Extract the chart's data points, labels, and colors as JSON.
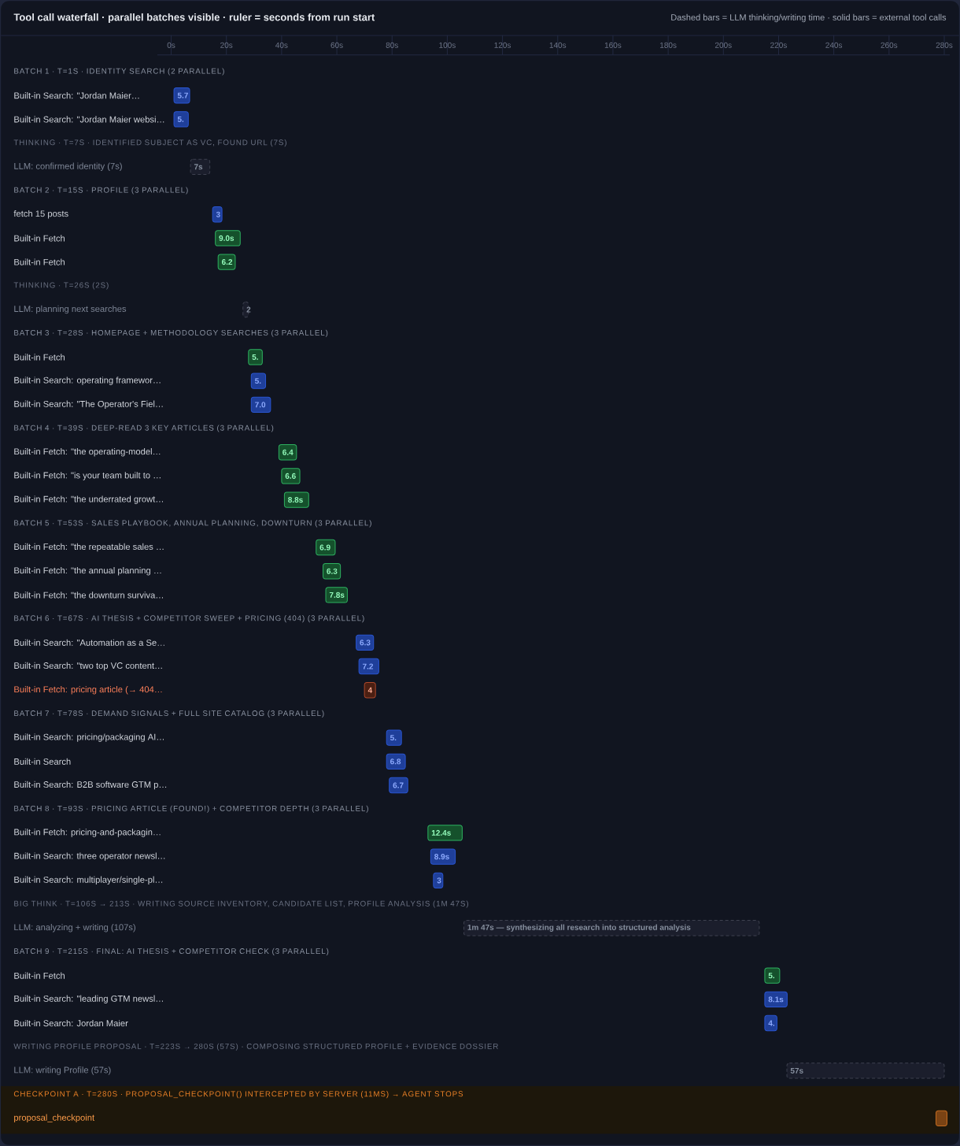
{
  "chart_data": {
    "type": "bar",
    "orientation": "horizontal",
    "title": "Tool call waterfall · parallel batches visible · ruler = seconds from run start",
    "subtitle": "Dashed bars = LLM thinking/writing time · solid bars = external tool calls",
    "categories": [
      "BATCH 1 · T=1S · IDENTITY SEARCH (2 PARALLEL)",
      "Built-in Search: \"Jordan Maier…",
      "Built-in Search: \"Jordan Maier websi…",
      "THINKING · T=7S · IDENTIFIED SUBJECT AS VC, FOUND URL (7S)",
      "LLM: confirmed identity (7s)",
      "BATCH 2 · T=15S · PROFILE (3 PARALLEL)",
      "fetch 15 posts",
      "Built-in Fetch",
      "Built-in Fetch",
      "THINKING · T=26S (2S)",
      "LLM: planning next searches",
      "BATCH 3 · T=28S · HOMEPAGE + METHODOLOGY SEARCHES (3 PARALLEL)",
      "Built-in Fetch",
      "Built-in Search: operating framewor…",
      "Built-in Search: \"The Operator's Fiel…",
      "BATCH 4 · T=39S · DEEP-READ 3 KEY ARTICLES (3 PARALLEL)",
      "Built-in Fetch: \"the operating-model…",
      "Built-in Fetch: \"is your team built to …",
      "Built-in Fetch: \"the underrated growt…",
      "BATCH 5 · T=53S · SALES PLAYBOOK, ANNUAL PLANNING, DOWNTURN (3 PARALLEL)",
      "Built-in Fetch: \"the repeatable sales …",
      "Built-in Fetch: \"the annual planning …",
      "Built-in Fetch: \"the downturn surviva…",
      "BATCH 6 · T=67S · AI THESIS + COMPETITOR SWEEP + PRICING (404) (3 PARALLEL)",
      "Built-in Search: \"Automation as a Se…",
      "Built-in Search: \"two top VC content…",
      "Built-in Fetch: pricing article (→ 404…",
      "BATCH 7 · T=78S · DEMAND SIGNALS + FULL SITE CATALOG (3 PARALLEL)",
      "Built-in Search: pricing/packaging AI…",
      "Built-in Search",
      "Built-in Search: B2B software GTM p…",
      "BATCH 8 · T=93S · PRICING ARTICLE (FOUND!) + COMPETITOR DEPTH (3 PARALLEL)",
      "Built-in Fetch: pricing-and-packagin…",
      "Built-in Search: three operator newsl…",
      "Built-in Search: multiplayer/single-pl…",
      "BIG THINK · T=106S → 213S · WRITING SOURCE INVENTORY, CANDIDATE LIST, PROFILE ANALYSIS (1M 47S)",
      "LLM: analyzing + writing (107s)",
      "BATCH 9 · T=215S · FINAL: AI THESIS + COMPETITOR CHECK (3 PARALLEL)",
      "Built-in Fetch",
      "Built-in Search: \"leading GTM newsl…",
      "Built-in Search: Jordan Maier",
      "WRITING PROFILE PROPOSAL · T=223S → 280S (57S) · COMPOSING STRUCTURED PROFILE + EVIDENCE DOSSIER",
      "LLM: writing Profile (57s)",
      "CHECKPOINT A · T=280S · PROPOSAL_CHECKPOINT() INTERCEPTED BY SERVER (11MS) → AGENT STOPS",
      "proposal_checkpoint"
    ],
    "series": [
      {
        "color": "#1f3f9a",
        "values": [
          null,
          5.7,
          5.2,
          null,
          null,
          null,
          3.4,
          null,
          null,
          null,
          null,
          null,
          null,
          5.2,
          7.0,
          null,
          null,
          null,
          null,
          null,
          null,
          null,
          null,
          null,
          6.3,
          7.2,
          null,
          null,
          5.4,
          6.8,
          6.7,
          null,
          null,
          8.9,
          3.4,
          null,
          null,
          null,
          null,
          8.1,
          4.4,
          null,
          null,
          null,
          null
        ],
        "base": [
          null,
          1,
          1,
          null,
          null,
          null,
          15,
          null,
          null,
          null,
          null,
          null,
          null,
          29,
          29,
          null,
          null,
          null,
          null,
          null,
          null,
          null,
          null,
          null,
          67,
          68,
          null,
          null,
          78,
          78,
          79,
          null,
          null,
          94,
          95,
          null,
          null,
          null,
          null,
          215,
          215,
          null,
          null,
          null,
          null
        ],
        "value_labels": [
          null,
          "5.7",
          "5.",
          null,
          null,
          null,
          "3",
          null,
          null,
          null,
          null,
          null,
          null,
          "5.",
          "7.0",
          null,
          null,
          null,
          null,
          null,
          null,
          null,
          null,
          null,
          "6.3",
          "7.2",
          null,
          null,
          "5.",
          "6.8",
          "6.7",
          null,
          null,
          "8.9s",
          "3",
          null,
          null,
          null,
          null,
          "8.1s",
          "4.",
          null,
          null,
          null,
          null
        ]
      },
      {
        "color": "#15512c",
        "values": [
          null,
          null,
          null,
          null,
          null,
          null,
          null,
          9.0,
          6.2,
          null,
          null,
          null,
          5.0,
          null,
          null,
          null,
          6.4,
          6.6,
          8.8,
          null,
          6.9,
          6.3,
          7.8,
          null,
          null,
          null,
          null,
          null,
          null,
          null,
          null,
          null,
          12.4,
          null,
          null,
          null,
          null,
          null,
          5.4,
          null,
          null,
          null,
          null,
          null,
          null
        ],
        "base": [
          null,
          null,
          null,
          null,
          null,
          null,
          null,
          16,
          17,
          null,
          null,
          null,
          28,
          null,
          null,
          null,
          39,
          40,
          41,
          null,
          52.5,
          55,
          56,
          null,
          null,
          null,
          null,
          null,
          null,
          null,
          null,
          null,
          93,
          null,
          null,
          null,
          null,
          null,
          215,
          null,
          null,
          null,
          null,
          null,
          null
        ],
        "value_labels": [
          null,
          null,
          null,
          null,
          null,
          null,
          null,
          "9.0s",
          "6.2",
          null,
          null,
          null,
          "5.",
          null,
          null,
          null,
          "6.4",
          "6.6",
          "8.8s",
          null,
          "6.9",
          "6.3",
          "7.8s",
          null,
          null,
          null,
          null,
          null,
          null,
          null,
          null,
          null,
          "12.4s",
          null,
          null,
          null,
          null,
          null,
          "5.",
          null,
          null,
          null,
          null,
          null,
          null
        ]
      },
      {
        "color": "#4b1f12",
        "values": [
          null,
          null,
          null,
          null,
          null,
          null,
          null,
          null,
          null,
          null,
          null,
          null,
          null,
          null,
          null,
          null,
          null,
          null,
          null,
          null,
          null,
          null,
          null,
          null,
          null,
          null,
          4.0,
          null,
          null,
          null,
          null,
          null,
          null,
          null,
          null,
          null,
          null,
          null,
          null,
          null,
          null,
          null,
          null,
          null,
          null
        ],
        "base": [
          null,
          null,
          null,
          null,
          null,
          null,
          null,
          null,
          null,
          null,
          null,
          null,
          null,
          null,
          null,
          null,
          null,
          null,
          null,
          null,
          null,
          null,
          null,
          null,
          null,
          null,
          70,
          null,
          null,
          null,
          null,
          null,
          null,
          null,
          null,
          null,
          null,
          null,
          null,
          null,
          null,
          null,
          null,
          null,
          null
        ],
        "value_labels": [
          null,
          null,
          null,
          null,
          null,
          null,
          null,
          null,
          null,
          null,
          null,
          null,
          null,
          null,
          null,
          null,
          null,
          null,
          null,
          null,
          null,
          null,
          null,
          null,
          null,
          null,
          "4",
          null,
          null,
          null,
          null,
          null,
          null,
          null,
          null,
          null,
          null,
          null,
          null,
          null,
          null,
          null,
          null,
          null,
          null
        ]
      },
      {
        "color": "#1b1e2c",
        "line_style": "dashed",
        "values": [
          null,
          null,
          null,
          null,
          7,
          null,
          null,
          null,
          null,
          null,
          2,
          null,
          null,
          null,
          null,
          null,
          null,
          null,
          null,
          null,
          null,
          null,
          null,
          null,
          null,
          null,
          null,
          null,
          null,
          null,
          null,
          null,
          null,
          null,
          null,
          null,
          107,
          null,
          null,
          null,
          null,
          null,
          57,
          null,
          null
        ],
        "base": [
          null,
          null,
          null,
          null,
          7,
          null,
          null,
          null,
          null,
          null,
          26,
          null,
          null,
          null,
          null,
          null,
          null,
          null,
          null,
          null,
          null,
          null,
          null,
          null,
          null,
          null,
          null,
          null,
          null,
          null,
          null,
          null,
          null,
          null,
          null,
          null,
          106,
          null,
          null,
          null,
          null,
          null,
          223,
          null,
          null
        ],
        "value_labels": [
          null,
          null,
          null,
          null,
          "7s",
          null,
          null,
          null,
          null,
          null,
          "2",
          null,
          null,
          null,
          null,
          null,
          null,
          null,
          null,
          null,
          null,
          null,
          null,
          null,
          null,
          null,
          null,
          null,
          null,
          null,
          null,
          null,
          null,
          null,
          null,
          null,
          null,
          null,
          null,
          null,
          null,
          null,
          "57s",
          null,
          null
        ]
      },
      {
        "color": "#7a4314",
        "values": [
          null,
          null,
          null,
          null,
          null,
          null,
          null,
          null,
          null,
          null,
          null,
          null,
          null,
          null,
          null,
          null,
          null,
          null,
          null,
          null,
          null,
          null,
          null,
          null,
          null,
          null,
          null,
          null,
          null,
          null,
          null,
          null,
          null,
          null,
          null,
          null,
          null,
          null,
          null,
          null,
          null,
          null,
          null,
          null,
          4
        ],
        "base": [
          null,
          null,
          null,
          null,
          null,
          null,
          null,
          null,
          null,
          null,
          null,
          null,
          null,
          null,
          null,
          null,
          null,
          null,
          null,
          null,
          null,
          null,
          null,
          null,
          null,
          null,
          null,
          null,
          null,
          null,
          null,
          null,
          null,
          null,
          null,
          null,
          null,
          null,
          null,
          null,
          null,
          null,
          null,
          null,
          277
        ]
      }
    ],
    "annotations": [
      {
        "text": "1m 47s — synthesizing all research into structured analysis",
        "x": 106,
        "y": "LLM: analyzing + writing (107s)"
      }
    ],
    "bands": [
      {
        "axis": "y",
        "from": "CHECKPOINT A · T=280S · PROPOSAL_CHECKPOINT() INTERCEPTED BY SERVER (11MS) → AGENT STOPS",
        "to": "proposal_checkpoint",
        "color": "#1d170b"
      }
    ],
    "xlim": [
      -5,
      282
    ],
    "xticks": [
      {
        "value": 0,
        "label": "0s"
      },
      {
        "value": 20,
        "label": "20s"
      },
      {
        "value": 40,
        "label": "40s"
      },
      {
        "value": 60,
        "label": "60s"
      },
      {
        "value": 80,
        "label": "80s"
      },
      {
        "value": 100,
        "label": "100s"
      },
      {
        "value": 120,
        "label": "120s"
      },
      {
        "value": 140,
        "label": "140s"
      },
      {
        "value": 160,
        "label": "160s"
      },
      {
        "value": 180,
        "label": "180s"
      },
      {
        "value": 200,
        "label": "200s"
      },
      {
        "value": 220,
        "label": "220s"
      },
      {
        "value": 240,
        "label": "240s"
      },
      {
        "value": 260,
        "label": "260s"
      },
      {
        "value": 280,
        "label": "280s"
      }
    ]
  }
}
